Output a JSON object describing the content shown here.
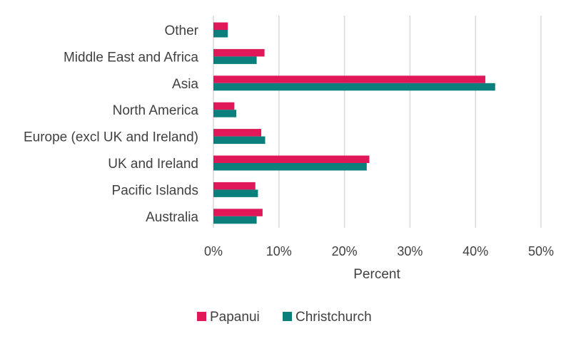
{
  "chart_data": {
    "type": "bar",
    "orientation": "horizontal",
    "categories": [
      "Other",
      "Middle East and Africa",
      "Asia",
      "North America",
      "Europe (excl UK and Ireland)",
      "UK and Ireland",
      "Pacific Islands",
      "Australia"
    ],
    "series": [
      {
        "name": "Papanui",
        "color": "#e0185a",
        "values": [
          2.2,
          7.8,
          41.5,
          3.2,
          7.3,
          23.8,
          6.4,
          7.5
        ]
      },
      {
        "name": "Christchurch",
        "color": "#0b7f7c",
        "values": [
          2.2,
          6.6,
          43.0,
          3.5,
          7.9,
          23.4,
          6.8,
          6.6
        ]
      }
    ],
    "xlabel": "Percent",
    "ylabel": "",
    "xlim": [
      0,
      50
    ],
    "xticks": [
      "0%",
      "10%",
      "20%",
      "30%",
      "40%",
      "50%"
    ],
    "xtick_values": [
      0,
      10,
      20,
      30,
      40,
      50
    ],
    "grid": true,
    "legend_position": "bottom-center"
  }
}
